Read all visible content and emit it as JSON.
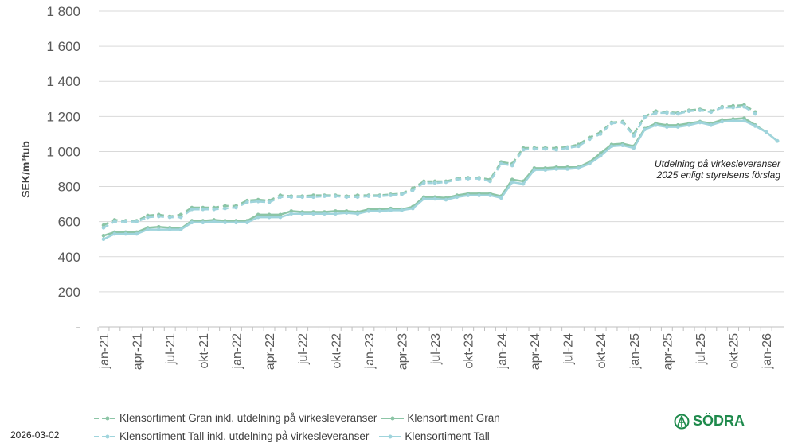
{
  "chart_data": {
    "type": "line",
    "ylabel": "SEK/m³fub",
    "ylim": [
      0,
      1800
    ],
    "yticks": [
      0,
      200,
      400,
      600,
      800,
      1000,
      1200,
      1400,
      1600,
      1800
    ],
    "ytick_labels": [
      "-",
      "200",
      "400",
      "600",
      "800",
      "1 000",
      "1 200",
      "1 400",
      "1 600",
      "1 800"
    ],
    "grid": true,
    "legend_position": "bottom",
    "x": [
      "jan-21",
      "feb-21",
      "mar-21",
      "apr-21",
      "maj-21",
      "jun-21",
      "jul-21",
      "aug-21",
      "sep-21",
      "okt-21",
      "nov-21",
      "dec-21",
      "jan-22",
      "feb-22",
      "mar-22",
      "apr-22",
      "maj-22",
      "jun-22",
      "jul-22",
      "aug-22",
      "sep-22",
      "okt-22",
      "nov-22",
      "dec-22",
      "jan-23",
      "feb-23",
      "mar-23",
      "apr-23",
      "maj-23",
      "jun-23",
      "jul-23",
      "aug-23",
      "sep-23",
      "okt-23",
      "nov-23",
      "dec-23",
      "jan-24",
      "feb-24",
      "mar-24",
      "apr-24",
      "maj-24",
      "jun-24",
      "jul-24",
      "aug-24",
      "sep-24",
      "okt-24",
      "nov-24",
      "dec-24",
      "jan-25",
      "feb-25",
      "mar-25",
      "apr-25",
      "maj-25",
      "jun-25",
      "jul-25",
      "aug-25",
      "sep-25",
      "okt-25",
      "nov-25",
      "dec-25",
      "jan-26",
      "feb-26"
    ],
    "xtick_labels": [
      "jan-21",
      "apr-21",
      "jul-21",
      "okt-21",
      "jan-22",
      "apr-22",
      "jul-22",
      "okt-22",
      "jan-23",
      "apr-23",
      "jul-23",
      "okt-23",
      "jan-24",
      "apr-24",
      "jul-24",
      "okt-24",
      "jan-25",
      "apr-25",
      "jul-25",
      "okt-25",
      "jan-26"
    ],
    "series": [
      {
        "name": "Klensortiment Gran inkl. utdelning på virkesleveranser",
        "color": "#8cc5a6",
        "dashed": true,
        "values": [
          580,
          610,
          605,
          605,
          635,
          640,
          630,
          640,
          680,
          680,
          680,
          690,
          690,
          720,
          725,
          720,
          750,
          745,
          745,
          750,
          750,
          750,
          745,
          750,
          750,
          750,
          755,
          760,
          790,
          830,
          830,
          830,
          845,
          850,
          850,
          840,
          940,
          930,
          1020,
          1020,
          1020,
          1020,
          1025,
          1040,
          1080,
          1110,
          1165,
          1170,
          1100,
          1200,
          1230,
          1225,
          1220,
          1235,
          1240,
          1230,
          1255,
          1260,
          1265,
          1225,
          null,
          null
        ]
      },
      {
        "name": "Klensortiment Gran",
        "color": "#8cc5a6",
        "dashed": false,
        "values": [
          520,
          540,
          540,
          540,
          565,
          570,
          565,
          560,
          605,
          605,
          610,
          605,
          605,
          605,
          640,
          640,
          640,
          660,
          655,
          655,
          655,
          660,
          660,
          655,
          670,
          670,
          675,
          670,
          685,
          740,
          740,
          735,
          750,
          760,
          760,
          760,
          745,
          840,
          830,
          905,
          905,
          910,
          910,
          910,
          940,
          990,
          1040,
          1045,
          1030,
          1130,
          1160,
          1150,
          1150,
          1160,
          1170,
          1160,
          1180,
          1185,
          1190,
          1150,
          1110,
          1060
        ]
      },
      {
        "name": "Klensortiment Tall inkl. utdelning på virkesleveranser",
        "color": "#9fd4dc",
        "dashed": true,
        "values": [
          565,
          600,
          600,
          600,
          625,
          630,
          625,
          625,
          670,
          670,
          670,
          675,
          680,
          710,
          715,
          710,
          740,
          740,
          740,
          740,
          745,
          745,
          740,
          740,
          745,
          745,
          750,
          755,
          780,
          820,
          820,
          825,
          840,
          845,
          845,
          830,
          930,
          920,
          1010,
          1015,
          1015,
          1010,
          1020,
          1030,
          1070,
          1100,
          1160,
          1165,
          1090,
          1195,
          1220,
          1220,
          1215,
          1230,
          1235,
          1225,
          1250,
          1250,
          1255,
          1215,
          null,
          null
        ]
      },
      {
        "name": "Klensortiment Tall",
        "color": "#9fd4dc",
        "dashed": false,
        "values": [
          500,
          530,
          530,
          530,
          555,
          555,
          555,
          555,
          595,
          595,
          600,
          595,
          595,
          595,
          625,
          625,
          625,
          645,
          645,
          645,
          645,
          645,
          650,
          645,
          660,
          660,
          665,
          665,
          675,
          730,
          730,
          725,
          740,
          750,
          750,
          750,
          735,
          825,
          815,
          895,
          895,
          900,
          900,
          905,
          930,
          975,
          1030,
          1035,
          1020,
          1125,
          1150,
          1140,
          1140,
          1150,
          1165,
          1150,
          1170,
          1175,
          1175,
          1145,
          1110,
          1060
        ]
      }
    ],
    "annotations": [
      "Utdelning på virkesleveranser",
      "2025 enligt styrelsens förslag"
    ]
  },
  "footer": {
    "date": "2026-03-02",
    "logo_text": "SÖDRA"
  }
}
